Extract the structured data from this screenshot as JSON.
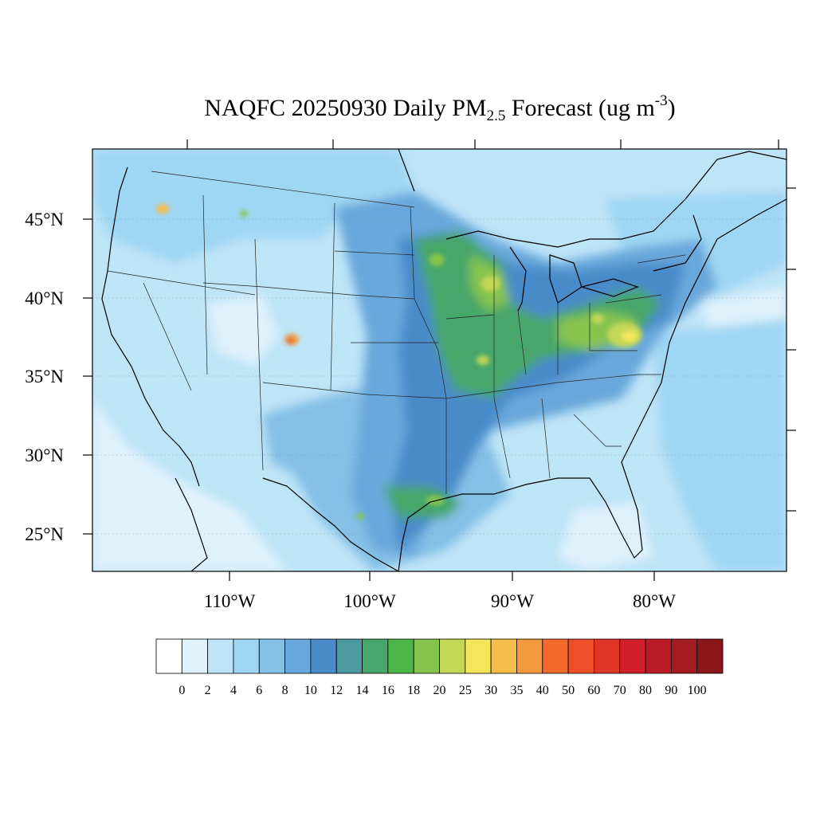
{
  "title": {
    "prefix": "NAQFC 20250930 Daily PM",
    "subscript": "2.5",
    "middle": " Forecast (ug m",
    "superscript": "-3",
    "suffix": ")"
  },
  "axes": {
    "lat_labels": [
      "45°N",
      "40°N",
      "35°N",
      "30°N",
      "25°N"
    ],
    "lon_labels": [
      "110°W",
      "100°W",
      "90°W",
      "80°W"
    ]
  },
  "colorbar": {
    "labels": [
      "0",
      "2",
      "4",
      "6",
      "8",
      "10",
      "12",
      "14",
      "16",
      "18",
      "20",
      "25",
      "30",
      "35",
      "40",
      "50",
      "60",
      "70",
      "80",
      "90",
      "100"
    ],
    "colors": [
      "#ffffff",
      "#dff1fb",
      "#bde4f7",
      "#9fd6f3",
      "#84bfe6",
      "#69a8dc",
      "#4a8bc9",
      "#4a9aa0",
      "#46a66b",
      "#4cb748",
      "#86c44d",
      "#c3d756",
      "#f4e65a",
      "#f6be49",
      "#f49a3c",
      "#f26b2d",
      "#ec4f2a",
      "#e03628",
      "#d21f2b",
      "#bb1b24",
      "#a41b22",
      "#8c1719"
    ]
  },
  "map": {
    "background_color": "#bde4f7"
  }
}
